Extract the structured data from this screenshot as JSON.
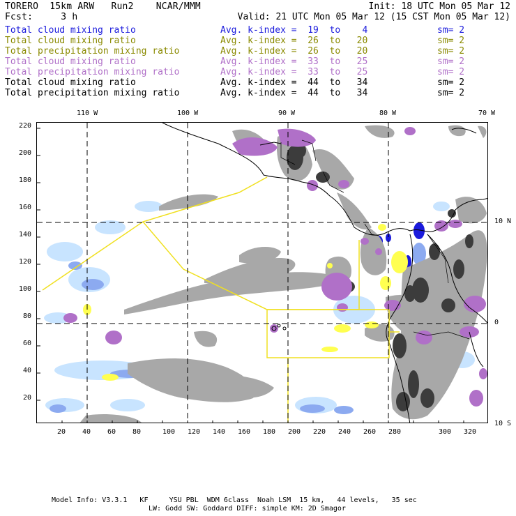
{
  "header": {
    "line1_left": "TORERO  15km ARW   Run2    NCAR/MMM",
    "line1_right": "Init: 18 UTC Mon 05 Mar 12",
    "line2_left": "Fcst:     3 h",
    "line2_right": "Valid: 21 UTC Mon 05 Mar 12 (15 CST Mon 05 Mar 12)"
  },
  "legend": [
    {
      "name": "Total cloud mixing ratio",
      "kindex": "Avg. k-index =  19  to    4",
      "sm": "sm= 2",
      "color": "#1a1adc"
    },
    {
      "name": "Total cloud mixing ratio",
      "kindex": "Avg. k-index =  26  to   20",
      "sm": "sm= 2",
      "color": "#8a8a00"
    },
    {
      "name": "Total precipitation mixing ratio",
      "kindex": "Avg. k-index =  26  to   20",
      "sm": "sm= 2",
      "color": "#8a8a00"
    },
    {
      "name": "Total cloud mixing ratio",
      "kindex": "Avg. k-index =  33  to   25",
      "sm": "sm= 2",
      "color": "#b070c8"
    },
    {
      "name": "Total precipitation mixing ratio",
      "kindex": "Avg. k-index =  33  to   25",
      "sm": "sm= 2",
      "color": "#b070c8"
    },
    {
      "name": "Total cloud mixing ratio",
      "kindex": "Avg. k-index =  44  to   34",
      "sm": "sm= 2",
      "color": "#000000"
    },
    {
      "name": "Total precipitation mixing ratio",
      "kindex": "Avg. k-index =  44  to   34",
      "sm": "sm= 2",
      "color": "#000000"
    }
  ],
  "map": {
    "grid_x_labels": [
      "20",
      "40",
      "60",
      "80",
      "100",
      "120",
      "140",
      "160",
      "180",
      "200",
      "220",
      "240",
      "260",
      "280",
      "300",
      "320"
    ],
    "grid_y_labels": [
      "20",
      "40",
      "60",
      "80",
      "100",
      "120",
      "140",
      "160",
      "180",
      "200",
      "220"
    ],
    "lon_labels": [
      "110 W",
      "100 W",
      "90 W",
      "80 W",
      "70 W"
    ],
    "lat_labels": [
      "10 N",
      "0",
      "10 S"
    ],
    "colors": {
      "gray_light": "#a8a8a8",
      "gray_dark": "#3c3c3c",
      "yellow": "#ffff50",
      "yellow_line": "#f0e020",
      "purple": "#b070c8",
      "blue_light": "#c8e4ff",
      "blue_mid": "#8caaf0",
      "blue_dark": "#1a1adc"
    }
  },
  "footer": {
    "line1": "Model Info: V3.3.1   KF     YSU PBL  WDM 6class  Noah LSM  15 km,   44 levels,   35 sec",
    "line2": "LW: Godd SW: Goddard DIFF: simple KM: 2D Smagor"
  }
}
